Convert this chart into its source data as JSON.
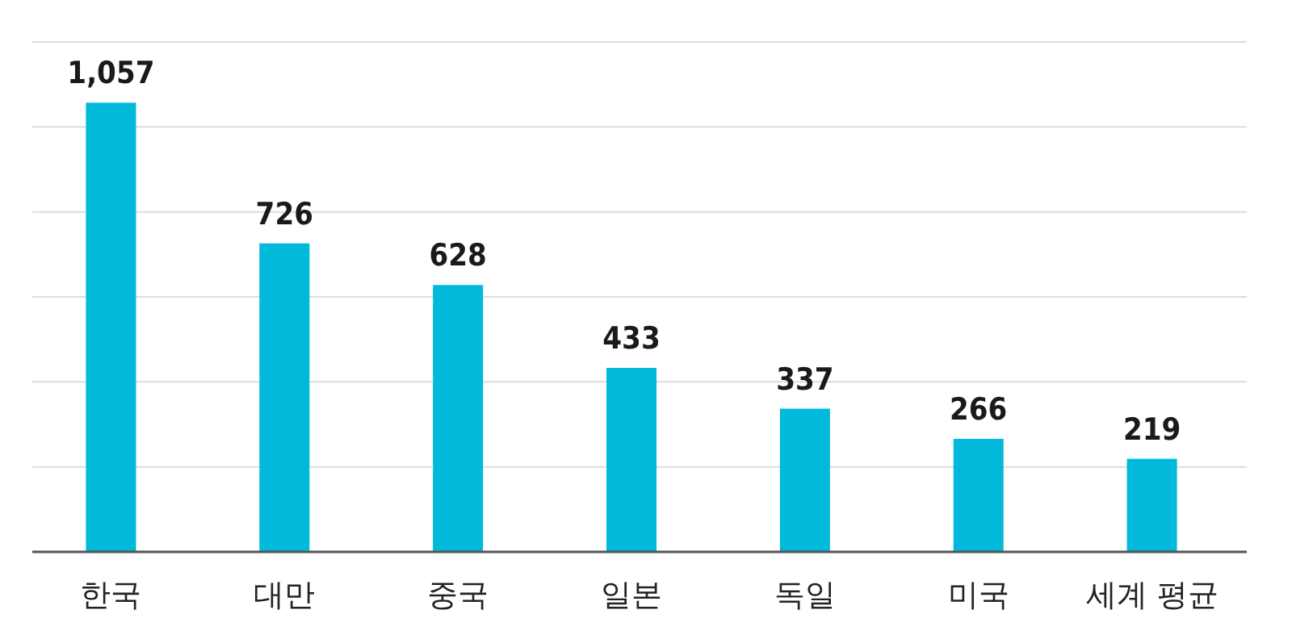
{
  "chart_data": {
    "type": "bar",
    "categories": [
      "한국",
      "대만",
      "중국",
      "일본",
      "독일",
      "미국",
      "세계 평균"
    ],
    "values": [
      1057,
      726,
      628,
      433,
      337,
      266,
      219
    ],
    "color": "#00b9db",
    "ylim": [
      0,
      1200
    ],
    "yticks": [
      {
        "value": 0,
        "label": null
      },
      {
        "value": 200,
        "label": null
      },
      {
        "value": 400,
        "label": null
      },
      {
        "value": 600,
        "label": null
      },
      {
        "value": 800,
        "label": null
      },
      {
        "value": 1000,
        "label": null
      },
      {
        "value": 1200,
        "label": null
      }
    ],
    "grid": "y",
    "value_labels": [
      "1,057",
      "726",
      "628",
      "433",
      "337",
      "266",
      "219"
    ]
  }
}
